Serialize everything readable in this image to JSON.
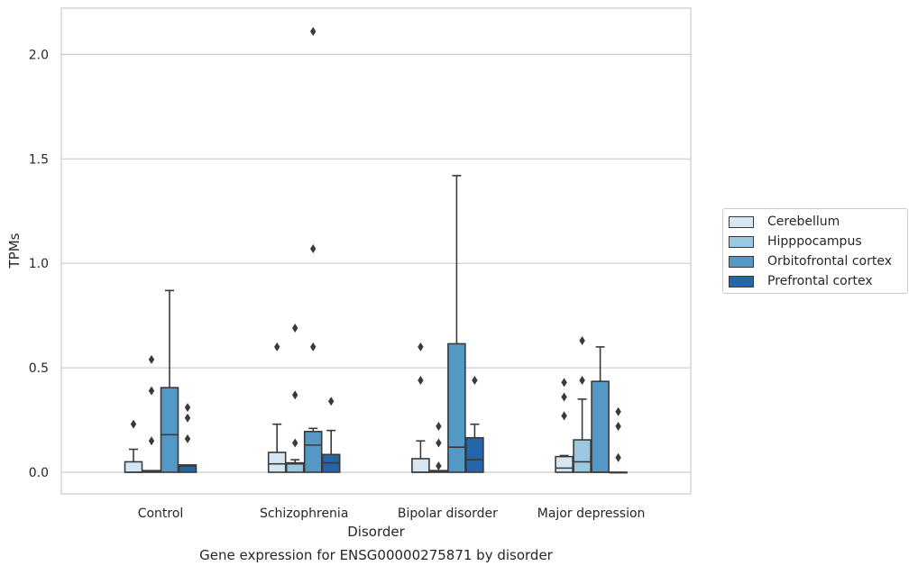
{
  "chart_data": {
    "type": "box",
    "xlabel": "Disorder",
    "ylabel": "TPMs",
    "caption": "Gene expression for ENSG00000275871 by disorder",
    "ylim": [
      -0.1,
      2.23
    ],
    "yticks": [
      "0.0",
      "0.5",
      "1.0",
      "1.5",
      "2.0"
    ],
    "grid": "horizontal",
    "legend_position": "right",
    "categories": [
      "Control",
      "Schizophrenia",
      "Bipolar disorder",
      "Major depression"
    ],
    "series": [
      {
        "name": "Cerebellum",
        "color": "#d6e6f3",
        "boxes": [
          {
            "whislo": 0.0,
            "q1": 0.0,
            "med": 0.0,
            "q3": 0.05,
            "whishi": 0.11,
            "fliers": [
              0.23
            ]
          },
          {
            "whislo": 0.0,
            "q1": 0.0,
            "med": 0.04,
            "q3": 0.095,
            "whishi": 0.23,
            "fliers": [
              0.6
            ]
          },
          {
            "whislo": 0.0,
            "q1": 0.0,
            "med": 0.0,
            "q3": 0.065,
            "whishi": 0.15,
            "fliers": [
              0.44,
              0.6
            ]
          },
          {
            "whislo": 0.0,
            "q1": 0.0,
            "med": 0.02,
            "q3": 0.075,
            "whishi": 0.08,
            "fliers": [
              0.27,
              0.36,
              0.43
            ]
          }
        ]
      },
      {
        "name": "Hipppocampus",
        "color": "#9ac8e0",
        "boxes": [
          {
            "whislo": 0.0,
            "q1": 0.0,
            "med": 0.005,
            "q3": 0.008,
            "whishi": 0.008,
            "fliers": [
              0.15,
              0.39,
              0.54
            ]
          },
          {
            "whislo": 0.0,
            "q1": 0.0,
            "med": 0.04,
            "q3": 0.045,
            "whishi": 0.06,
            "fliers": [
              0.14,
              0.37,
              0.69
            ]
          },
          {
            "whislo": 0.0,
            "q1": 0.0,
            "med": 0.004,
            "q3": 0.008,
            "whishi": 0.008,
            "fliers": [
              0.03,
              0.14,
              0.22
            ]
          },
          {
            "whislo": 0.0,
            "q1": 0.0,
            "med": 0.05,
            "q3": 0.155,
            "whishi": 0.35,
            "fliers": [
              0.44,
              0.63
            ]
          }
        ]
      },
      {
        "name": "Orbitofrontal cortex",
        "color": "#5499c6",
        "boxes": [
          {
            "whislo": 0.0,
            "q1": 0.0,
            "med": 0.18,
            "q3": 0.405,
            "whishi": 0.87,
            "fliers": []
          },
          {
            "whislo": 0.0,
            "q1": 0.0,
            "med": 0.13,
            "q3": 0.195,
            "whishi": 0.21,
            "fliers": [
              0.6,
              1.07,
              2.11
            ]
          },
          {
            "whislo": 0.0,
            "q1": 0.0,
            "med": 0.12,
            "q3": 0.615,
            "whishi": 1.42,
            "fliers": []
          },
          {
            "whislo": 0.0,
            "q1": 0.0,
            "med": 0.0,
            "q3": 0.435,
            "whishi": 0.6,
            "fliers": []
          }
        ]
      },
      {
        "name": "Prefrontal cortex",
        "color": "#2565a8",
        "boxes": [
          {
            "whislo": 0.0,
            "q1": 0.0,
            "med": 0.03,
            "q3": 0.035,
            "whishi": 0.035,
            "fliers": [
              0.16,
              0.26,
              0.31
            ]
          },
          {
            "whislo": 0.0,
            "q1": 0.0,
            "med": 0.045,
            "q3": 0.085,
            "whishi": 0.2,
            "fliers": [
              0.34
            ]
          },
          {
            "whislo": 0.0,
            "q1": 0.0,
            "med": 0.06,
            "q3": 0.165,
            "whishi": 0.23,
            "fliers": [
              0.44
            ]
          },
          {
            "whislo": 0.0,
            "q1": 0.0,
            "med": 0.0,
            "q3": 0.0,
            "whishi": 0.0,
            "fliers": [
              0.07,
              0.22,
              0.29
            ]
          }
        ]
      }
    ]
  }
}
